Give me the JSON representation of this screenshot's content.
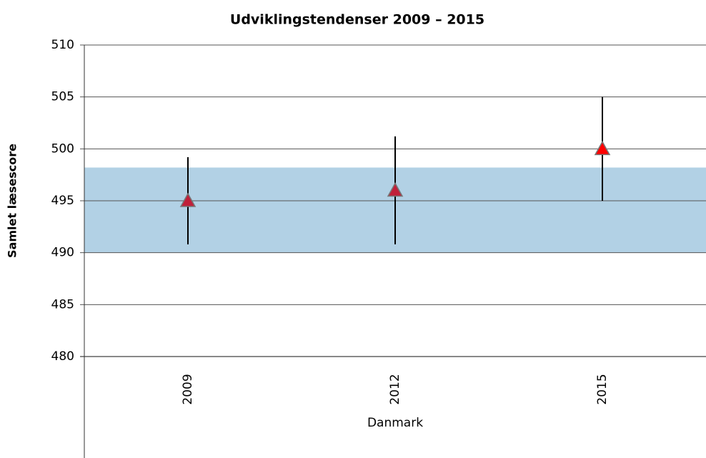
{
  "chart_data": {
    "type": "errorbar",
    "title": "Udviklingstendenser 2009 – 2015",
    "x_label": "Danmark",
    "y_label": "Samlet læsescore",
    "categories": [
      "2009",
      "2012",
      "2015"
    ],
    "values": [
      495,
      496,
      500
    ],
    "errors": [
      4.2,
      5.2,
      5
    ],
    "colors": [
      "#c0203a",
      "#c0203a",
      "#ff0000"
    ],
    "band": {
      "low": 490,
      "high": 498.2,
      "color": "#b2d1e5"
    },
    "ylim": [
      480,
      510
    ],
    "yticks": [
      480,
      485,
      490,
      495,
      500,
      505,
      510
    ],
    "grid": true
  }
}
